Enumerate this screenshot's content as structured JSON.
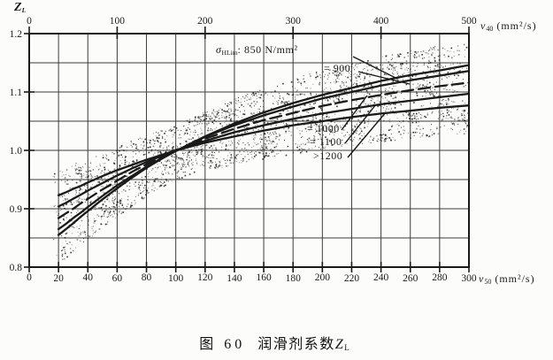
{
  "figure": {
    "caption_fig": "图 60",
    "caption_text": "润滑剂系数",
    "caption_symbol": "Z",
    "caption_symbol_sub": "L"
  },
  "axes": {
    "y_title": "Z",
    "y_title_sub": "L",
    "top_title_sym": "ν",
    "top_title_sub": "40",
    "top_title_unit": "(mm²/s)",
    "bottom_title_sym": "ν",
    "bottom_title_sub": "50",
    "bottom_title_unit": "(mm²/s)",
    "top_ticks": [
      "0",
      "100",
      "200",
      "300",
      "400",
      "500"
    ],
    "bottom_ticks": [
      "0",
      "20",
      "40",
      "60",
      "80",
      "100",
      "120",
      "140",
      "160",
      "180",
      "200",
      "220",
      "240",
      "260",
      "280",
      "300"
    ],
    "left_ticks": [
      "1.2",
      "1.1",
      "1.0",
      "0.9",
      "0.8"
    ]
  },
  "labels": {
    "sigma_sym": "σ",
    "sigma_sub": "HLim",
    "sigma_rest": ": 850 N/mm²",
    "s900": "= 900",
    "s1000": "= 1000",
    "s1100": "= 1100",
    "s1200": ">1200"
  },
  "chart_data": {
    "type": "line",
    "title": "图 60 润滑剂系数 ZL",
    "ylabel": "ZL",
    "xlabel_top": "ν40 (mm²/s)",
    "xlabel_bottom": "ν50 (mm²/s)",
    "x_bottom_range": [
      0,
      300
    ],
    "x_top_range": [
      0,
      500
    ],
    "ylim": [
      0.8,
      1.2
    ],
    "y_grid_step": 0.05,
    "x_grid_step": 20,
    "grid": true,
    "legend_position": "inline-labels-with-leader-lines",
    "x": [
      20,
      25,
      30,
      35,
      40,
      50,
      60,
      70,
      80,
      90,
      100,
      120,
      140,
      160,
      180,
      200,
      220,
      240,
      260,
      280,
      300
    ],
    "series": [
      {
        "name": "σHLim: 850 N/mm²",
        "style": "solid",
        "values": [
          0.855,
          0.865,
          0.875,
          0.886,
          0.896,
          0.916,
          0.935,
          0.953,
          0.97,
          0.985,
          0.999,
          1.024,
          1.046,
          1.065,
          1.081,
          1.095,
          1.107,
          1.119,
          1.129,
          1.137,
          1.146
        ]
      },
      {
        "name": "σHLim = 900",
        "style": "solid",
        "values": [
          0.865,
          0.874,
          0.884,
          0.893,
          0.903,
          0.922,
          0.94,
          0.956,
          0.972,
          0.986,
          0.999,
          1.023,
          1.043,
          1.06,
          1.075,
          1.089,
          1.1,
          1.111,
          1.12,
          1.128,
          1.136
        ]
      },
      {
        "name": "σHLim = 1000",
        "style": "dashed",
        "values": [
          0.884,
          0.892,
          0.9,
          0.909,
          0.917,
          0.933,
          0.948,
          0.963,
          0.976,
          0.988,
          0.999,
          1.02,
          1.037,
          1.052,
          1.064,
          1.076,
          1.086,
          1.095,
          1.103,
          1.11,
          1.116
        ]
      },
      {
        "name": "σHLim = 1100",
        "style": "solid",
        "values": [
          0.904,
          0.91,
          0.917,
          0.924,
          0.931,
          0.944,
          0.957,
          0.969,
          0.98,
          0.99,
          1.0,
          1.016,
          1.031,
          1.043,
          1.054,
          1.063,
          1.071,
          1.079,
          1.085,
          1.091,
          1.097
        ]
      },
      {
        "name": "σHLim >1200",
        "style": "solid",
        "values": [
          0.923,
          0.928,
          0.934,
          0.939,
          0.945,
          0.956,
          0.966,
          0.975,
          0.984,
          0.992,
          1.0,
          1.013,
          1.024,
          1.034,
          1.043,
          1.05,
          1.057,
          1.063,
          1.068,
          1.073,
          1.077
        ]
      }
    ],
    "scatter_band": {
      "type": "stipple",
      "offset_above_Z": 0.043,
      "offset_below_Z": 0.048,
      "note": "dotted tolerance band enclosing all curves, ν50 from 20 to 300"
    }
  },
  "colors": {
    "ink": "#1a1a1a",
    "grid": "#3d3d3d",
    "paper": "#fcfcfa"
  }
}
